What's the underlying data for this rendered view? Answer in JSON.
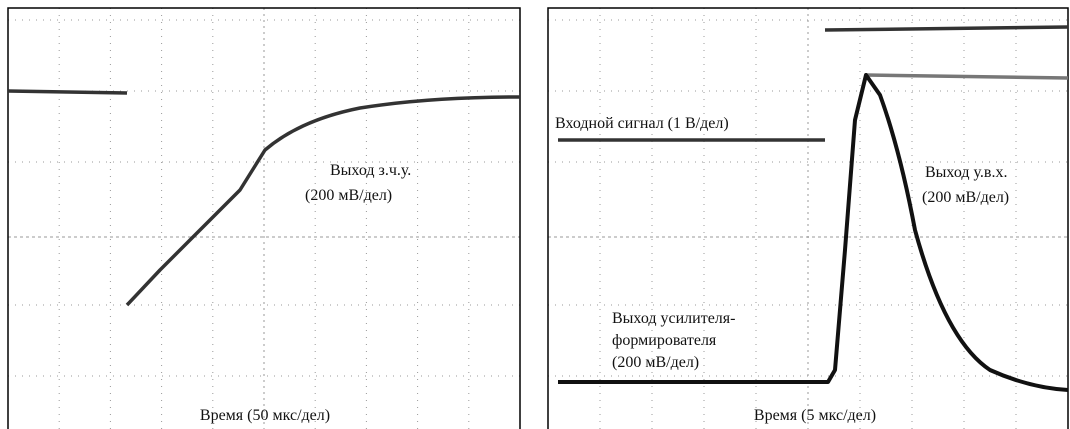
{
  "panels": [
    {
      "labels": [
        "Выход з.ч.у.",
        "(200 мВ/дел)"
      ],
      "time_label": "Время (50 мкс/дел)"
    },
    {
      "labels": [
        "Входной сигнал (1 В/дел)",
        "Выход у.в.х.",
        "(200 мВ/дел)",
        "Выход усилителя-",
        "формирователя",
        "(200 мВ/дел)"
      ],
      "time_label": "Время (5 мкс/дел)"
    }
  ]
}
